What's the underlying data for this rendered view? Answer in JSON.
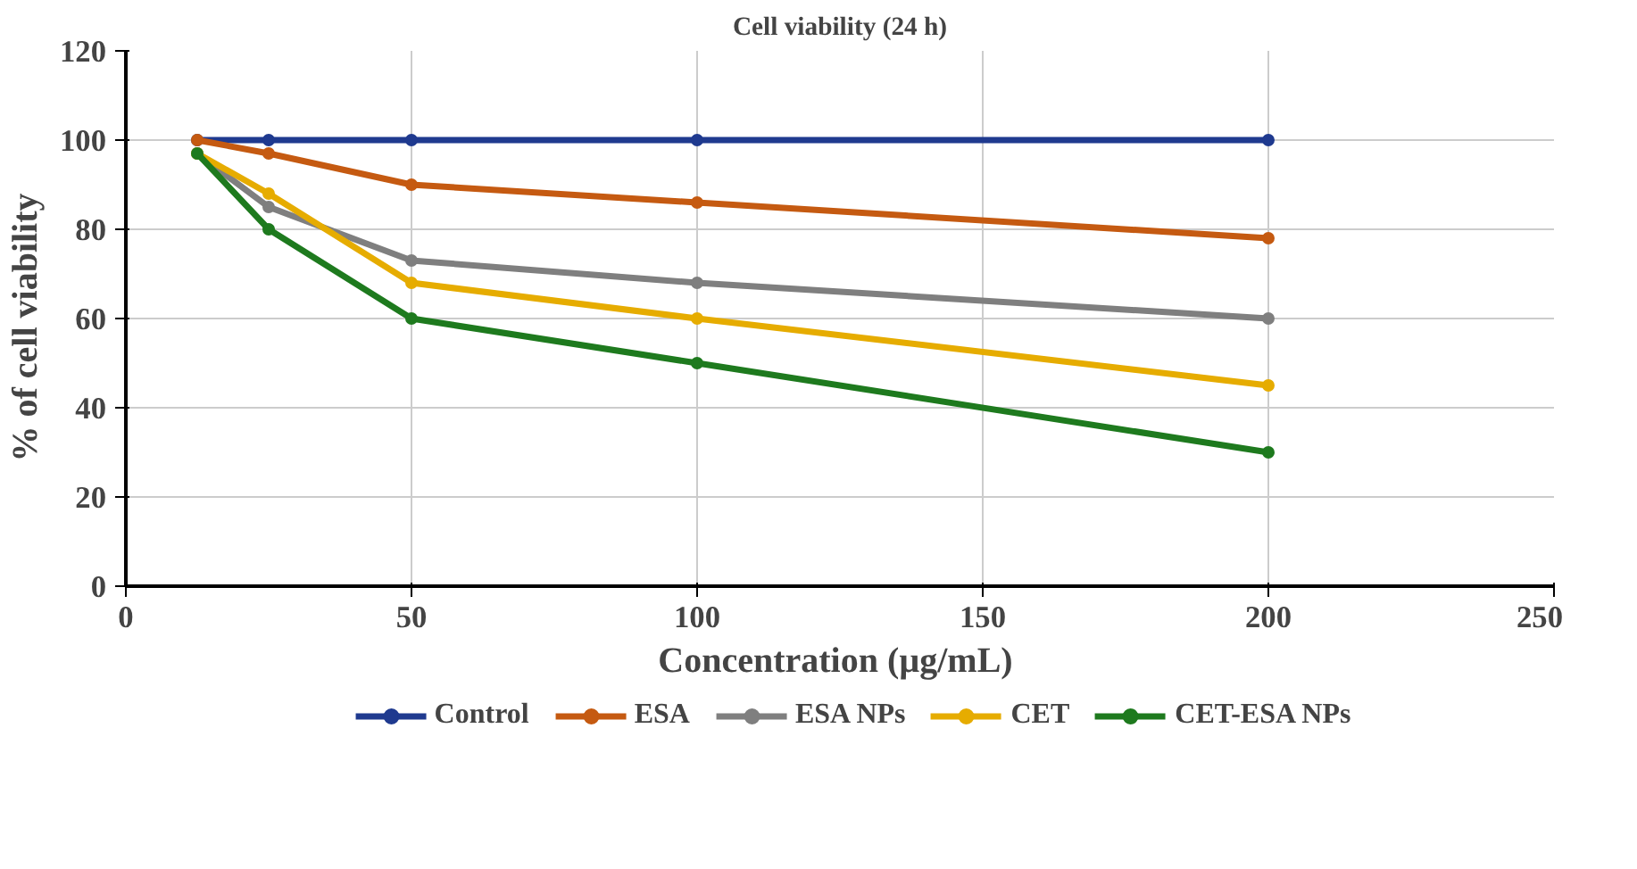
{
  "chart_data": {
    "type": "line",
    "title": "Cell viability (24 h)",
    "xlabel": "Concentration  (µg/mL)",
    "ylabel": "%  of  cell viability",
    "x": [
      12.5,
      25,
      50,
      100,
      200
    ],
    "series": [
      {
        "name": "Control",
        "color": "#1f3a8f",
        "values": [
          100,
          100,
          100,
          100,
          100
        ]
      },
      {
        "name": "ESA",
        "color": "#c55a11",
        "values": [
          100,
          97,
          90,
          86,
          78
        ]
      },
      {
        "name": "ESA NPs",
        "color": "#7f7f7f",
        "values": [
          97,
          85,
          73,
          68,
          60
        ]
      },
      {
        "name": "CET",
        "color": "#e6ac00",
        "values": [
          97,
          88,
          68,
          60,
          45
        ]
      },
      {
        "name": "CET-ESA NPs",
        "color": "#1e7a1e",
        "values": [
          97,
          80,
          60,
          50,
          30
        ]
      }
    ],
    "xlim": [
      0,
      250
    ],
    "xticks": [
      0,
      50,
      100,
      150,
      200,
      250
    ],
    "ylim": [
      0,
      120
    ],
    "yticks": [
      0,
      20,
      40,
      60,
      80,
      100,
      120
    ],
    "grid": true,
    "legend": "bottom",
    "marker": "circle",
    "line_style": "solid"
  }
}
